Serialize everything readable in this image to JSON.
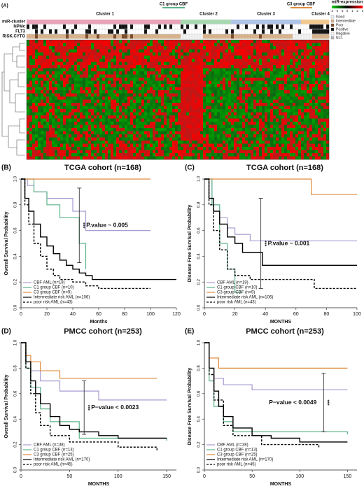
{
  "panel_a": {
    "label": "(A)",
    "clusters": [
      "Cluster 1",
      "C1 group CBF",
      "Cluster 2",
      "Cluster 3",
      "C3 group CBF",
      "Cluster 4"
    ],
    "annotation_rows": [
      "miR-cluster",
      "NPMc",
      "FLT3",
      "RISK.CYTO"
    ],
    "legend_title": "miR-expression",
    "scale": [
      -3,
      -2,
      -1,
      0,
      1,
      2,
      3
    ],
    "legend_items": [
      {
        "name": "Good",
        "color": "#f2f2f2"
      },
      {
        "name": "Intermediate",
        "color": "#d9b38c"
      },
      {
        "name": "Poor",
        "color": "#7a4a2a"
      },
      {
        "name": "Positive",
        "color": "#111111"
      },
      {
        "name": "Negative",
        "color": "#ffffff"
      },
      {
        "name": "N.D.",
        "color": "#bbbbbb"
      }
    ]
  },
  "chart_data": [
    {
      "type": "line",
      "label": "(B)",
      "title": "TCGA cohort (n=168)",
      "y_label": "Overall Survival Probability",
      "x_label": "Months",
      "xlim": [
        0,
        120
      ],
      "xticks": [
        0,
        20,
        40,
        60,
        80,
        100,
        120
      ],
      "ylim": [
        0,
        1
      ],
      "yticks": [
        {
          "value": 0,
          "label": "0.0"
        },
        0.2,
        0.4,
        0.6,
        0.8,
        {
          "value": 1,
          "label": "1.0"
        }
      ],
      "annotation": "P.value ~ 0.005",
      "stars": "***",
      "sig_bar": {
        "x": 45,
        "from": 0.35,
        "to": 0.93
      },
      "series": [
        {
          "name": "CBF AML (n=19)",
          "color": "#a99ad2",
          "x": [
            0,
            5,
            10,
            20,
            40,
            50,
            100
          ],
          "values": [
            1,
            0.95,
            0.9,
            0.85,
            0.75,
            0.6,
            0.6
          ]
        },
        {
          "name": "C1 group CBF (n=10)",
          "color": "#5db38a",
          "x": [
            0,
            10,
            20,
            30,
            45,
            50
          ],
          "values": [
            1,
            0.9,
            0.8,
            0.7,
            0.5,
            0.3
          ]
        },
        {
          "name": "C3 group CBF (n=9)",
          "color": "#e08a3c",
          "x": [
            0,
            100
          ],
          "values": [
            1,
            1
          ]
        },
        {
          "name": "Intermediate risk AML (n=106)",
          "color": "#000000",
          "x": [
            0,
            3,
            6,
            10,
            15,
            20,
            25,
            30,
            35,
            40,
            45,
            50,
            55,
            120
          ],
          "values": [
            1,
            0.85,
            0.75,
            0.65,
            0.55,
            0.48,
            0.42,
            0.37,
            0.33,
            0.3,
            0.27,
            0.25,
            0.22,
            0.22
          ]
        },
        {
          "name": "poor risk AML (n=43)",
          "color": "#000000",
          "dash": true,
          "x": [
            0,
            3,
            6,
            10,
            15,
            20,
            25,
            30,
            40,
            50,
            60,
            100
          ],
          "values": [
            1,
            0.8,
            0.65,
            0.5,
            0.4,
            0.3,
            0.25,
            0.22,
            0.2,
            0.17,
            0.15,
            0.15
          ]
        }
      ]
    },
    {
      "type": "line",
      "label": "(C)",
      "title": "TCGA cohort (n=168)",
      "y_label": "Disease Free Survival Probability",
      "x_label": "MONTHS",
      "xlim": [
        0,
        100
      ],
      "xticks": [
        0,
        20,
        40,
        60,
        80,
        100
      ],
      "ylim": [
        0,
        1
      ],
      "yticks": [
        {
          "value": 0,
          "label": "0.0"
        },
        0.2,
        0.4,
        0.6,
        0.8,
        {
          "value": 1,
          "label": "1.0"
        }
      ],
      "annotation": "P.value ~ 0.001",
      "stars": "***",
      "sig_bar": {
        "x": 37,
        "from": 0.15,
        "to": 0.85
      },
      "series": [
        {
          "name": "CBF AML (n=19)",
          "color": "#a99ad2",
          "x": [
            0,
            5,
            10,
            15,
            20,
            30,
            100
          ],
          "values": [
            1,
            0.8,
            0.7,
            0.62,
            0.57,
            0.52,
            0.52
          ]
        },
        {
          "name": "C1 group CBF (n=10)",
          "color": "#5db38a",
          "x": [
            0,
            5,
            10,
            15,
            20,
            25
          ],
          "values": [
            1,
            0.8,
            0.5,
            0.3,
            0.12,
            0.12
          ]
        },
        {
          "name": "C3 group CBF (n=9)",
          "color": "#e08a3c",
          "x": [
            0,
            70,
            100
          ],
          "values": [
            1,
            0.88,
            0.88
          ]
        },
        {
          "name": "Intermediate risk AML (n=106)",
          "color": "#000000",
          "x": [
            0,
            3,
            6,
            10,
            15,
            20,
            25,
            35,
            38,
            100
          ],
          "values": [
            1,
            0.85,
            0.75,
            0.65,
            0.55,
            0.5,
            0.43,
            0.43,
            0.33,
            0.33
          ]
        },
        {
          "name": "poor risk AML (n=43)",
          "color": "#000000",
          "dash": true,
          "x": [
            0,
            3,
            6,
            10,
            15,
            20,
            30,
            70,
            72,
            100
          ],
          "values": [
            1,
            0.8,
            0.6,
            0.45,
            0.3,
            0.25,
            0.22,
            0.22,
            0.15,
            0.15
          ]
        }
      ]
    },
    {
      "type": "line",
      "label": "(D)",
      "title": "PMCC cohort (n=253)",
      "y_label": "Overall Survival Probability",
      "x_label": "MONTHS",
      "xlim": [
        0,
        160
      ],
      "xticks": [
        0,
        50,
        100,
        150
      ],
      "ylim": [
        0,
        1
      ],
      "yticks": [
        {
          "value": 0,
          "label": "0.0"
        },
        0.2,
        0.4,
        0.6,
        0.8,
        {
          "value": 1,
          "label": "1.0"
        }
      ],
      "annotation": "P−value < 0.0023",
      "stars": "***",
      "sig_bar": {
        "x": 65,
        "from": 0.28,
        "to": 0.7
      },
      "series": [
        {
          "name": "CBF AML (n=38)",
          "color": "#a99ad2",
          "x": [
            0,
            5,
            10,
            20,
            40,
            80,
            150
          ],
          "values": [
            1,
            0.85,
            0.78,
            0.7,
            0.62,
            0.55,
            0.55
          ]
        },
        {
          "name": "C1 group CBF (n=13)",
          "color": "#5db38a",
          "x": [
            0,
            5,
            10,
            20,
            30,
            60,
            150
          ],
          "values": [
            1,
            0.8,
            0.65,
            0.48,
            0.38,
            0.25,
            0.23
          ]
        },
        {
          "name": "C3 group CBF (n=25)",
          "color": "#e08a3c",
          "x": [
            0,
            5,
            10,
            20,
            40,
            140
          ],
          "values": [
            1,
            0.9,
            0.85,
            0.78,
            0.72,
            0.72
          ]
        },
        {
          "name": "Intermediate risk AML (n=170)",
          "color": "#000000",
          "x": [
            0,
            5,
            10,
            15,
            20,
            30,
            40,
            50,
            60,
            80,
            100,
            150
          ],
          "values": [
            1,
            0.85,
            0.7,
            0.6,
            0.52,
            0.42,
            0.35,
            0.32,
            0.3,
            0.27,
            0.25,
            0.25
          ]
        },
        {
          "name": "poor risk AML (n=45)",
          "color": "#000000",
          "dash": true,
          "x": [
            0,
            5,
            10,
            15,
            20,
            30,
            50,
            100,
            140
          ],
          "values": [
            1,
            0.8,
            0.6,
            0.45,
            0.35,
            0.27,
            0.22,
            0.18,
            0.15
          ]
        }
      ]
    },
    {
      "type": "line",
      "label": "(E)",
      "title": "PMCC cohort (n=253)",
      "y_label": "Disease Free Survival Probability",
      "x_label": "MONTHS",
      "xlim": [
        0,
        160
      ],
      "xticks": [
        0,
        50,
        100,
        150
      ],
      "ylim": [
        0,
        1
      ],
      "yticks": [
        {
          "value": 0,
          "label": "0.0"
        },
        0.2,
        0.4,
        0.6,
        0.8,
        {
          "value": 1,
          "label": "1.0"
        }
      ],
      "annotation": "P−value < 0.0049",
      "stars": "***",
      "sig_bar": {
        "x": 125,
        "from": 0.3,
        "to": 0.76
      },
      "series": [
        {
          "name": "CBF AML (n=38)",
          "color": "#a99ad2",
          "x": [
            0,
            5,
            10,
            20,
            50,
            150
          ],
          "values": [
            1,
            0.8,
            0.72,
            0.67,
            0.63,
            0.63
          ]
        },
        {
          "name": "C1 group CBF (n=13)",
          "color": "#5db38a",
          "x": [
            0,
            5,
            10,
            20,
            30,
            150
          ],
          "values": [
            1,
            0.7,
            0.5,
            0.38,
            0.3,
            0.28
          ]
        },
        {
          "name": "C3 group CBF (n=25)",
          "color": "#e08a3c",
          "x": [
            0,
            5,
            15,
            150
          ],
          "values": [
            1,
            0.88,
            0.8,
            0.8
          ]
        },
        {
          "name": "Intermediate risk AML (n=170)",
          "color": "#000000",
          "x": [
            0,
            5,
            10,
            15,
            20,
            30,
            50,
            70,
            100,
            150
          ],
          "values": [
            1,
            0.8,
            0.62,
            0.5,
            0.42,
            0.33,
            0.27,
            0.25,
            0.22,
            0.22
          ]
        },
        {
          "name": "poor risk AML (n=45)",
          "color": "#000000",
          "dash": true,
          "x": [
            0,
            5,
            10,
            20,
            30,
            60,
            120
          ],
          "values": [
            1,
            0.75,
            0.55,
            0.35,
            0.27,
            0.2,
            0.17
          ]
        }
      ]
    }
  ]
}
